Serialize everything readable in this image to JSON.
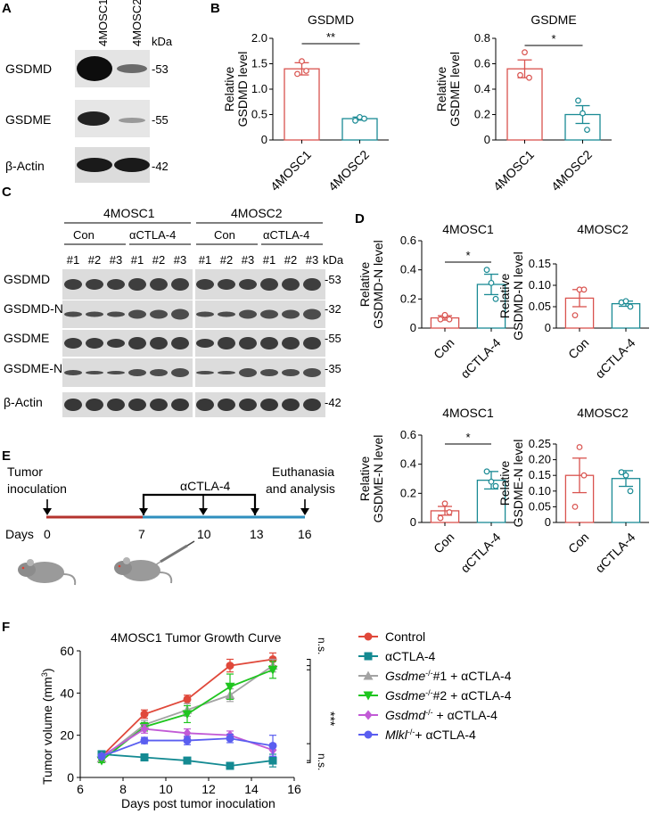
{
  "panel_labels": {
    "A": "A",
    "B": "B",
    "C": "C",
    "D": "D",
    "E": "E",
    "F": "F"
  },
  "panelA": {
    "lanes": [
      "4MOSC1",
      "4MOSC2"
    ],
    "kda": "kDa",
    "rows": [
      {
        "label": "GSDMD",
        "kd": "-53"
      },
      {
        "label": "GSDME",
        "kd": "-55"
      },
      {
        "label": "β-Actin",
        "kd": "-42"
      }
    ]
  },
  "panelB": {
    "ylabel_line1": "Relative",
    "charts": [
      {
        "title": "GSDMD",
        "ylabel2": "GSDMD level",
        "sig": "**"
      },
      {
        "title": "GSDME",
        "ylabel2": "GSDME level",
        "sig": "*"
      }
    ]
  },
  "panelC": {
    "groups": [
      "4MOSC1",
      "4MOSC2"
    ],
    "treatments": [
      "Con",
      "αCTLA-4",
      "Con",
      "αCTLA-4"
    ],
    "replicates": [
      "#1",
      "#2",
      "#3",
      "#1",
      "#2",
      "#3",
      "#1",
      "#2",
      "#3",
      "#1",
      "#2",
      "#3"
    ],
    "kda": "kDa",
    "rows": [
      {
        "label": "GSDMD",
        "kd": "-53"
      },
      {
        "label": "GSDMD-N",
        "kd": "-32"
      },
      {
        "label": "GSDME",
        "kd": "-55"
      },
      {
        "label": "GSDME-N",
        "kd": "-35"
      },
      {
        "label": "β-Actin",
        "kd": "-42"
      }
    ]
  },
  "panelD": {
    "ylabel_line1": "Relative",
    "charts": [
      {
        "title": "4MOSC1",
        "ylabel2": "GSDMD-N level",
        "sig": "*"
      },
      {
        "title": "4MOSC2",
        "ylabel2": "GSDMD-N level",
        "sig": ""
      },
      {
        "title": "4MOSC1",
        "ylabel2": "GSDME-N level",
        "sig": "*"
      },
      {
        "title": "4MOSC2",
        "ylabel2": "GSDME-N level",
        "sig": ""
      }
    ]
  },
  "panelE": {
    "tumor_line1": "Tumor",
    "tumor_line2": "inoculation",
    "drug": "αCTLA-4",
    "euth_line1": "Euthanasia",
    "euth_line2": "and analysis",
    "days_label": "Days",
    "days": [
      "0",
      "7",
      "10",
      "13",
      "16"
    ]
  },
  "panelF": {
    "title": "4MOSC1 Tumor Growth Curve",
    "ylabel_pre": "Tumor volume (mm",
    "ylabel_sup": "3",
    "ylabel_post": ")",
    "xlabel": "Days post tumor inoculation",
    "sig_top": "n.s.",
    "sig_mid": "***",
    "sig_bot": "n.s.",
    "legend": [
      {
        "label": "Control",
        "color": "#e0483a",
        "marker": "circle"
      },
      {
        "label": "αCTLA-4",
        "color": "#148a92",
        "marker": "square"
      },
      {
        "gene": "Gsdme",
        "sup": "-/-",
        "rest": "#1 + αCTLA-4",
        "color": "#a3a3a3",
        "marker": "triangle"
      },
      {
        "gene": "Gsdme",
        "sup": "-/-",
        "rest": "#2 + αCTLA-4",
        "color": "#1fc51f",
        "marker": "triangle-down"
      },
      {
        "gene": "Gsdmd",
        "sup": "-/-",
        "rest": " + αCTLA-4",
        "color": "#c25ad6",
        "marker": "diamond"
      },
      {
        "gene": "Mlkl",
        "sup": "-/-",
        "rest": "+ αCTLA-4",
        "color": "#5a5ef0",
        "marker": "circle"
      }
    ]
  },
  "chart_data": [
    {
      "type": "bar",
      "title": "GSDMD",
      "xlabel": "",
      "ylabel": "Relative GSDMD level",
      "categories": [
        "4MOSC1",
        "4MOSC2"
      ],
      "values": [
        1.4,
        0.42
      ],
      "errors": [
        0.12,
        0.03
      ],
      "points": [
        [
          1.3,
          1.55,
          1.36
        ],
        [
          0.38,
          0.45,
          0.42
        ]
      ],
      "colors": [
        "#d9534f",
        "#1a8a94"
      ],
      "ylim": [
        0,
        2.0
      ],
      "yticks": [
        0,
        0.5,
        1.0,
        1.5,
        2.0
      ],
      "significance": "**"
    },
    {
      "type": "bar",
      "title": "GSDME",
      "xlabel": "",
      "ylabel": "Relative GSDME level",
      "categories": [
        "4MOSC1",
        "4MOSC2"
      ],
      "values": [
        0.56,
        0.2
      ],
      "errors": [
        0.07,
        0.07
      ],
      "points": [
        [
          0.51,
          0.69,
          0.49
        ],
        [
          0.31,
          0.21,
          0.08
        ]
      ],
      "colors": [
        "#d9534f",
        "#1a8a94"
      ],
      "ylim": [
        0,
        0.8
      ],
      "yticks": [
        0,
        0.2,
        0.4,
        0.6,
        0.8
      ],
      "significance": "*"
    },
    {
      "type": "bar",
      "title": "4MOSC1",
      "xlabel": "",
      "ylabel": "Relative GSDMD-N level",
      "categories": [
        "Con",
        "αCTLA-4"
      ],
      "values": [
        0.07,
        0.3
      ],
      "errors": [
        0.015,
        0.07
      ],
      "points": [
        [
          0.06,
          0.09,
          0.06
        ],
        [
          0.4,
          0.31,
          0.2
        ]
      ],
      "colors": [
        "#d9534f",
        "#1a8a94"
      ],
      "ylim": [
        0,
        0.6
      ],
      "yticks": [
        0,
        0.2,
        0.4,
        0.6
      ],
      "significance": "*"
    },
    {
      "type": "bar",
      "title": "4MOSC2",
      "xlabel": "",
      "ylabel": "Relative GSDMD-N level",
      "categories": [
        "Con",
        "αCTLA-4"
      ],
      "values": [
        0.07,
        0.057
      ],
      "errors": [
        0.02,
        0.006
      ],
      "points": [
        [
          0.03,
          0.09,
          0.09
        ],
        [
          0.06,
          0.063,
          0.05
        ]
      ],
      "colors": [
        "#d9534f",
        "#1a8a94"
      ],
      "ylim": [
        0,
        0.15
      ],
      "yticks": [
        0,
        0.05,
        0.1,
        0.15
      ],
      "significance": ""
    },
    {
      "type": "bar",
      "title": "4MOSC1",
      "xlabel": "",
      "ylabel": "Relative GSDME-N level",
      "categories": [
        "Con",
        "αCTLA-4"
      ],
      "values": [
        0.08,
        0.29
      ],
      "errors": [
        0.03,
        0.06
      ],
      "points": [
        [
          0.03,
          0.13,
          0.07
        ],
        [
          0.35,
          0.28,
          0.25
        ]
      ],
      "colors": [
        "#d9534f",
        "#1a8a94"
      ],
      "ylim": [
        0,
        0.6
      ],
      "yticks": [
        0,
        0.2,
        0.4,
        0.6
      ],
      "significance": "*"
    },
    {
      "type": "bar",
      "title": "4MOSC2",
      "xlabel": "",
      "ylabel": "Relative GSDME-N level",
      "categories": [
        "Con",
        "αCTLA-4"
      ],
      "values": [
        0.15,
        0.14
      ],
      "errors": [
        0.055,
        0.025
      ],
      "points": [
        [
          0.05,
          0.24,
          0.15
        ],
        [
          0.16,
          0.15,
          0.1
        ]
      ],
      "colors": [
        "#d9534f",
        "#1a8a94"
      ],
      "ylim": [
        0,
        0.25
      ],
      "yticks": [
        0,
        0.05,
        0.1,
        0.15,
        0.2,
        0.25
      ],
      "significance": ""
    },
    {
      "type": "line",
      "title": "4MOSC1 Tumor Growth Curve",
      "xlabel": "Days post tumor inoculation",
      "ylabel": "Tumor volume (mm3)",
      "x": [
        7,
        9,
        11,
        13,
        15
      ],
      "xlim": [
        6,
        16
      ],
      "xticks": [
        6,
        8,
        10,
        12,
        14,
        16
      ],
      "ylim": [
        0,
        60
      ],
      "yticks": [
        0,
        20,
        40,
        60
      ],
      "series": [
        {
          "name": "Control",
          "color": "#e0483a",
          "marker": "circle",
          "values": [
            10,
            30,
            37,
            53,
            56
          ],
          "errors": [
            1,
            2,
            2,
            3,
            3
          ]
        },
        {
          "name": "αCTLA-4",
          "color": "#148a92",
          "marker": "square",
          "values": [
            11,
            9.5,
            8,
            5.5,
            8
          ],
          "errors": [
            1,
            1,
            1,
            1,
            3
          ]
        },
        {
          "name": "Gsdme-/-#1 + αCTLA-4",
          "color": "#a3a3a3",
          "marker": "triangle",
          "values": [
            9,
            25,
            32,
            39,
            53
          ],
          "errors": [
            1,
            2,
            3,
            3,
            3
          ]
        },
        {
          "name": "Gsdme-/-#2 + αCTLA-4",
          "color": "#1fc51f",
          "marker": "triangle-down",
          "values": [
            8,
            24,
            30,
            43,
            51
          ],
          "errors": [
            1,
            2,
            4,
            6,
            4
          ]
        },
        {
          "name": "Gsdmd-/- + αCTLA-4",
          "color": "#c25ad6",
          "marker": "diamond",
          "values": [
            10,
            23,
            21,
            20,
            13
          ],
          "errors": [
            1,
            2,
            2,
            2,
            3
          ]
        },
        {
          "name": "Mlkl-/-+ αCTLA-4",
          "color": "#5a5ef0",
          "marker": "circle",
          "values": [
            10,
            17.5,
            17.5,
            18.5,
            15
          ],
          "errors": [
            1,
            1.5,
            2,
            2,
            5
          ]
        }
      ]
    }
  ]
}
